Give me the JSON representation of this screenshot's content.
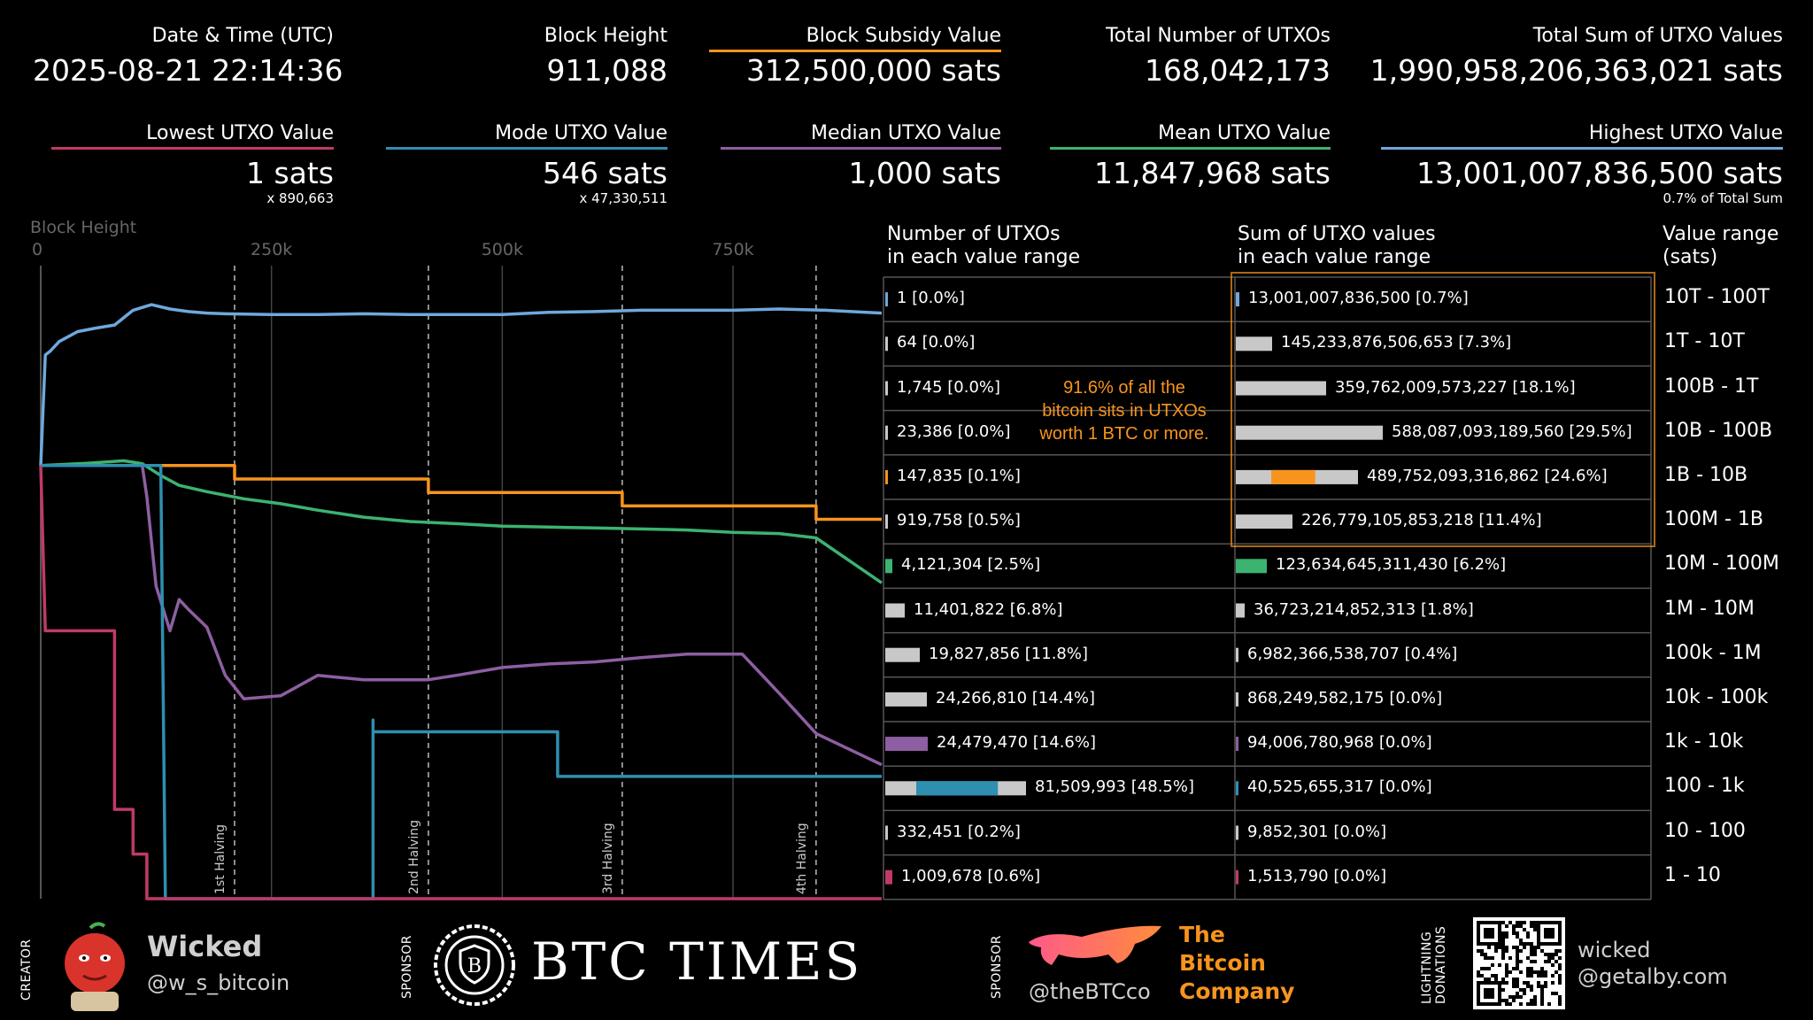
{
  "colors": {
    "orange": "#f7941d",
    "blue_high": "#6fa8dc",
    "green_mean": "#3cb371",
    "purple_median": "#8e5ea2",
    "teal_mode": "#2e8fb0",
    "pink_lowest": "#c0396b",
    "grey_bar": "#c8c8c8"
  },
  "stats_top": [
    {
      "label": "Date & Time (UTC)",
      "value": "2025-08-21 22:14:36"
    },
    {
      "label": "Block Height",
      "value": "911,088"
    },
    {
      "label": "Block Subsidy Value",
      "value": "312,500,000 sats"
    },
    {
      "label": "Total Number of UTXOs",
      "value": "168,042,173"
    },
    {
      "label": "Total Sum of UTXO Values",
      "value": "1,990,958,206,363,021 sats"
    }
  ],
  "stats_bottom": [
    {
      "label": "Lowest UTXO Value",
      "value": "1 sats",
      "sub": "x 890,663"
    },
    {
      "label": "Mode UTXO Value",
      "value": "546 sats",
      "sub": "x 47,330,511"
    },
    {
      "label": "Median UTXO Value",
      "value": "1,000 sats",
      "sub": ""
    },
    {
      "label": "Mean UTXO Value",
      "value": "11,847,968 sats",
      "sub": ""
    },
    {
      "label": "Highest UTXO Value",
      "value": "13,001,007,836,500 sats",
      "sub": "0.7% of Total Sum"
    }
  ],
  "chart_data": [
    {
      "type": "line",
      "xlabel": "Block Height",
      "x_ticks": [
        "0",
        "250k",
        "500k",
        "750k"
      ],
      "xlim": [
        0,
        911088
      ],
      "scale": "log",
      "halvings": [
        {
          "x": 210000,
          "label": "1st Halving"
        },
        {
          "x": 420000,
          "label": "2nd Halving"
        },
        {
          "x": 630000,
          "label": "3rd Halving"
        },
        {
          "x": 840000,
          "label": "4th Halving"
        }
      ],
      "series": [
        {
          "key": "highest",
          "color": "#6fa8dc",
          "points": [
            [
              0,
              5000000000.0
            ],
            [
              5000,
              1500000000000.0
            ],
            [
              10000,
              1800000000000.0
            ],
            [
              20000,
              3000000000000.0
            ],
            [
              40000,
              5000000000000.0
            ],
            [
              60000,
              6000000000000.0
            ],
            [
              80000,
              7000000000000.0
            ],
            [
              100000,
              15000000000000.0
            ],
            [
              120000,
              20000000000000.0
            ],
            [
              140000,
              16000000000000.0
            ],
            [
              160000,
              14000000000000.0
            ],
            [
              180000,
              13000000000000.0
            ],
            [
              200000,
              12500000000000.0
            ],
            [
              250000,
              12000000000000.0
            ],
            [
              300000,
              12000000000000.0
            ],
            [
              350000,
              12500000000000.0
            ],
            [
              400000,
              12000000000000.0
            ],
            [
              450000,
              12000000000000.0
            ],
            [
              500000,
              12000000000000.0
            ],
            [
              550000,
              13500000000000.0
            ],
            [
              600000,
              14000000000000.0
            ],
            [
              650000,
              15000000000000.0
            ],
            [
              700000,
              15000000000000.0
            ],
            [
              750000,
              15000000000000.0
            ],
            [
              800000,
              16000000000000.0
            ],
            [
              850000,
              15000000000000.0
            ],
            [
              911088,
              13000000000000.0
            ]
          ]
        },
        {
          "key": "subsidy",
          "color": "#f7941d",
          "points": [
            [
              0,
              5000000000.0
            ],
            [
              210000,
              5000000000.0
            ],
            [
              210000,
              2500000000.0
            ],
            [
              420000,
              2500000000.0
            ],
            [
              420000,
              1250000000.0
            ],
            [
              630000,
              1250000000.0
            ],
            [
              630000,
              625000000.0
            ],
            [
              840000,
              625000000.0
            ],
            [
              840000,
              312500000.0
            ],
            [
              911088,
              312500000.0
            ]
          ]
        },
        {
          "key": "mean",
          "color": "#3cb371",
          "points": [
            [
              0,
              5000000000.0
            ],
            [
              50000,
              5600000000.0
            ],
            [
              90000,
              6400000000.0
            ],
            [
              110000,
              5500000000.0
            ],
            [
              130000,
              3000000000.0
            ],
            [
              150000,
              1800000000.0
            ],
            [
              180000,
              1300000000.0
            ],
            [
              220000,
              900000000.0
            ],
            [
              260000,
              700000000.0
            ],
            [
              300000,
              500000000.0
            ],
            [
              350000,
              350000000.0
            ],
            [
              400000,
              280000000.0
            ],
            [
              450000,
              250000000.0
            ],
            [
              500000,
              220000000.0
            ],
            [
              550000,
              210000000.0
            ],
            [
              600000,
              200000000.0
            ],
            [
              650000,
              190000000.0
            ],
            [
              700000,
              180000000.0
            ],
            [
              750000,
              160000000.0
            ],
            [
              800000,
              150000000.0
            ],
            [
              840000,
              120000000.0
            ],
            [
              911088,
              11800000.0
            ]
          ]
        },
        {
          "key": "median",
          "color": "#8e5ea2",
          "points": [
            [
              0,
              5000000000.0
            ],
            [
              110000,
              5000000000.0
            ],
            [
              115000,
              1000000000.0
            ],
            [
              125000,
              10000000.0
            ],
            [
              140000,
              1000000.0
            ],
            [
              150000,
              5000000.0
            ],
            [
              160000,
              3000000.0
            ],
            [
              180000,
              1200000.0
            ],
            [
              200000,
              100000.0
            ],
            [
              220000,
              30000.0
            ],
            [
              260000,
              35000.0
            ],
            [
              300000,
              100000.0
            ],
            [
              350000,
              80000.0
            ],
            [
              420000,
              80000.0
            ],
            [
              450000,
              100000.0
            ],
            [
              500000,
              150000.0
            ],
            [
              550000,
              180000.0
            ],
            [
              600000,
              200000.0
            ],
            [
              650000,
              250000.0
            ],
            [
              700000,
              300000.0
            ],
            [
              760000,
              300000.0
            ],
            [
              800000,
              40000.0
            ],
            [
              840000,
              5000.0
            ],
            [
              911088,
              1000
            ]
          ]
        },
        {
          "key": "mode",
          "color": "#2e8fb0",
          "points": [
            [
              0,
              5000000000.0
            ],
            [
              130000,
              5000000000.0
            ],
            [
              135000,
              1
            ],
            [
              360000,
              1
            ],
            [
              360000,
              10000.0
            ],
            [
              360000,
              5460
            ],
            [
              560000,
              5460
            ],
            [
              560000,
              546
            ],
            [
              911088,
              546
            ]
          ]
        },
        {
          "key": "lowest",
          "color": "#c0396b",
          "points": [
            [
              0,
              5000000000.0
            ],
            [
              5000,
              1000000.0
            ],
            [
              80000,
              1000000.0
            ],
            [
              80000,
              100
            ],
            [
              100000,
              100
            ],
            [
              100000,
              10
            ],
            [
              115000,
              10
            ],
            [
              115000,
              1
            ],
            [
              911088,
              1
            ]
          ]
        }
      ]
    },
    {
      "type": "bar",
      "title": "Number of UTXOs\nin each value range",
      "categories": [
        "10T - 100T",
        "1T - 10T",
        "100B - 1T",
        "10B - 100B",
        "1B - 10B",
        "100M - 1B",
        "10M - 100M",
        "1M - 10M",
        "100k - 1M",
        "10k - 100k",
        "1k - 10k",
        "100 - 1k",
        "10 - 100",
        "1 - 10"
      ],
      "values": [
        1,
        64,
        1745,
        23386,
        147835,
        919758,
        4121304,
        11401822,
        19827856,
        24266810,
        24479470,
        81509993,
        332451,
        1009678
      ],
      "labels": [
        "1 [0.0%]",
        "64 [0.0%]",
        "1,745 [0.0%]",
        "23,386 [0.0%]",
        "147,835 [0.1%]",
        "919,758 [0.5%]",
        "4,121,304 [2.5%]",
        "11,401,822 [6.8%]",
        "19,827,856 [11.8%]",
        "24,266,810 [14.4%]",
        "24,479,470 [14.6%]",
        "81,509,993 [48.5%]",
        "332,451 [0.2%]",
        "1,009,678 [0.6%]"
      ],
      "highlight": [
        {
          "row": 0,
          "color": "#6fa8dc",
          "fraction": 0.0
        },
        {
          "row": 4,
          "color": "#f7941d",
          "fraction": 0.0
        },
        {
          "row": 6,
          "color": "#3cb371",
          "fraction": 0.0
        },
        {
          "row": 10,
          "color": "#8e5ea2",
          "fraction": 0.0
        },
        {
          "row": 11,
          "color": "#2e8fb0",
          "fraction": 0.58
        },
        {
          "row": 13,
          "color": "#c0396b",
          "fraction": 0.0
        }
      ]
    },
    {
      "type": "bar",
      "title": "Sum of UTXO values\nin each value range",
      "categories": [
        "10T - 100T",
        "1T - 10T",
        "100B - 1T",
        "10B - 100B",
        "1B - 10B",
        "100M - 1B",
        "10M - 100M",
        "1M - 10M",
        "100k - 1M",
        "10k - 100k",
        "1k - 10k",
        "100 - 1k",
        "10 - 100",
        "1 - 10"
      ],
      "values": [
        13001007836500,
        145233876506653,
        359762009573227,
        588087093189560,
        489752093316862,
        226779105853218,
        123634645311430,
        36723214852313,
        6982366538707,
        868249582175,
        94006780968,
        40525655317,
        9852301,
        1513790
      ],
      "labels": [
        "13,001,007,836,500 [0.7%]",
        "145,233,876,506,653 [7.3%]",
        "359,762,009,573,227 [18.1%]",
        "588,087,093,189,560 [29.5%]",
        "489,752,093,316,862 [24.6%]",
        "226,779,105,853,218 [11.4%]",
        "123,634,645,311,430 [6.2%]",
        "36,723,214,852,313 [1.8%]",
        "6,982,366,538,707 [0.4%]",
        "868,249,582,175 [0.0%]",
        "94,006,780,968 [0.0%]",
        "40,525,655,317 [0.0%]",
        "9,852,301 [0.0%]",
        "1,513,790 [0.0%]"
      ],
      "percent": [
        0.7,
        7.3,
        18.1,
        29.5,
        24.6,
        11.4,
        6.2,
        1.8,
        0.4,
        0.0,
        0.0,
        0.0,
        0.0,
        0.0
      ],
      "highlight_orange_row": 4
    }
  ],
  "range_header": "Value range\n(sats)",
  "annotation": "91.6% of all the\nbitcoin sits in UTXOs\nworth 1 BTC or more.",
  "footer": {
    "creator_tag": "CREATOR",
    "creator_name": "Wicked",
    "creator_handle": "@w_s_bitcoin",
    "sponsor_tag_1": "SPONSOR",
    "btc_times": "BTC TIMES",
    "sponsor_tag_2": "SPONSOR",
    "btc_co_handle": "@theBTCco",
    "btc_co_name": [
      "The",
      "Bitcoin",
      "Company"
    ],
    "lightning_tag": "LIGHTNING\nDONATIONS",
    "lightning_addr": [
      "wicked",
      "@getalby.com"
    ]
  }
}
